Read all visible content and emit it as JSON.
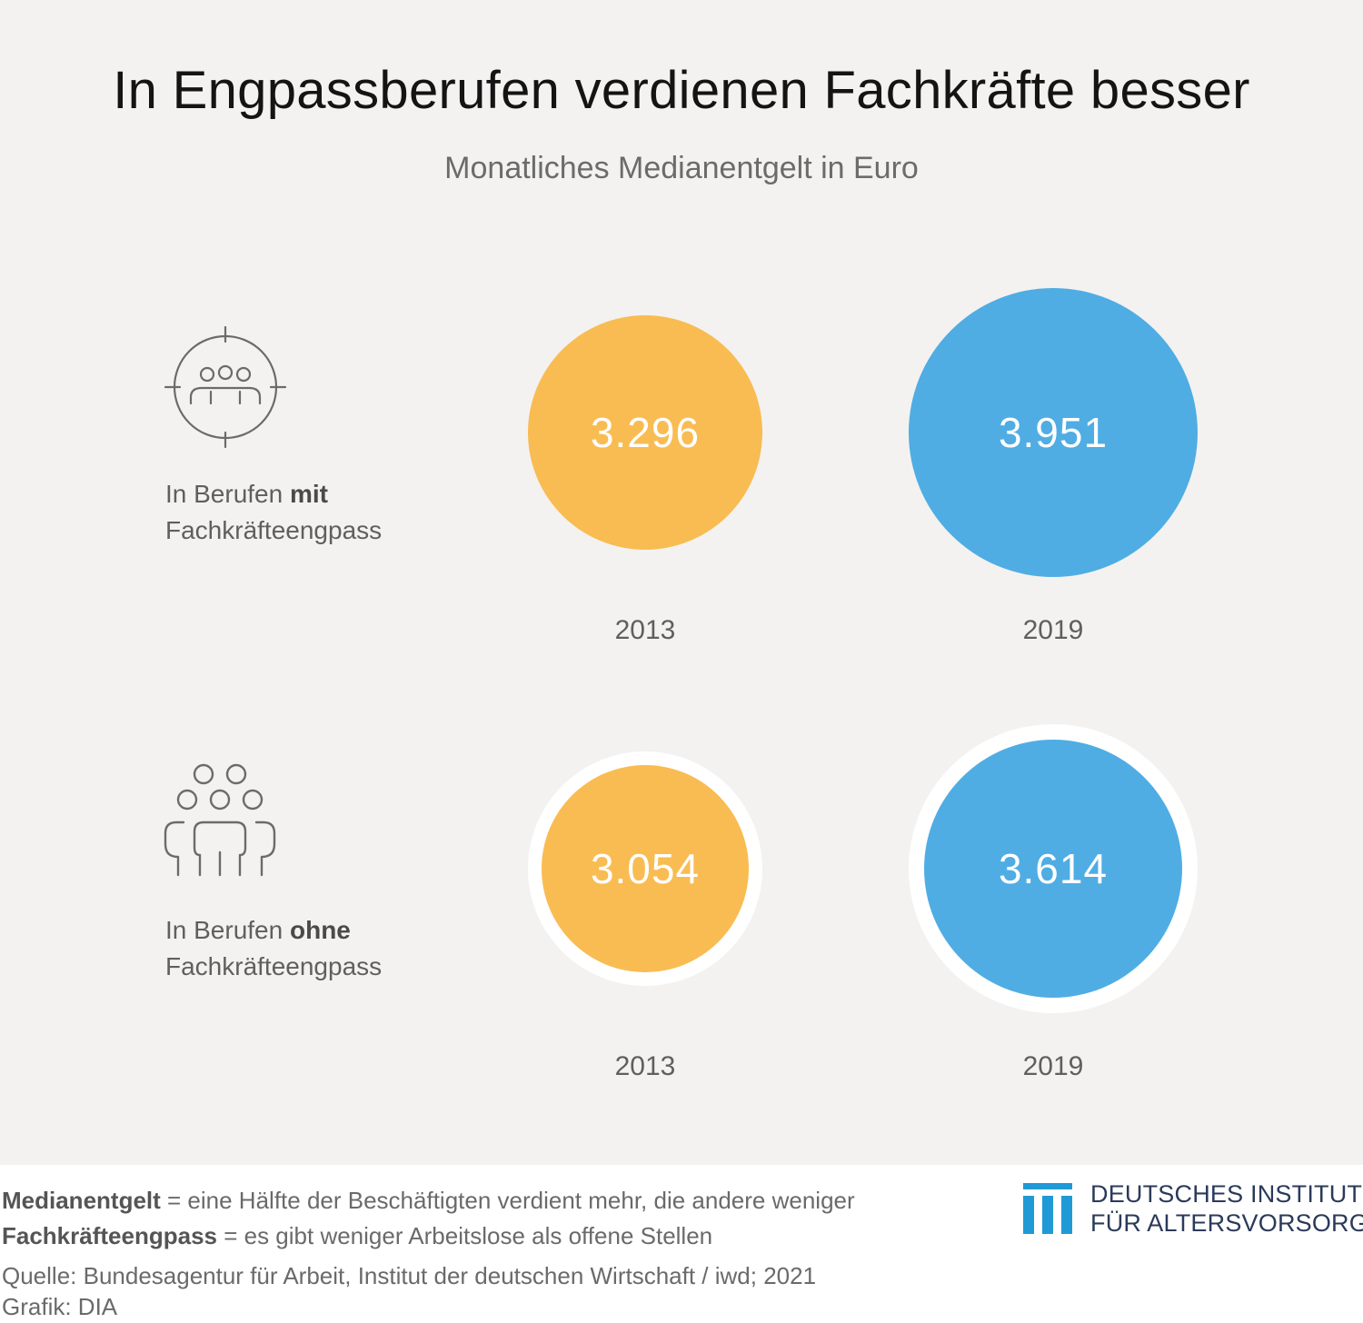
{
  "title": "In Engpassberufen verdienen Fachkräfte besser",
  "subtitle": "Monatliches Medianentgelt in Euro",
  "colors": {
    "year_2013": "#f9bc52",
    "year_2019": "#4fade3",
    "background": "#f3f2f1"
  },
  "chart_data": {
    "type": "bubble",
    "title": "In Engpassberufen verdienen Fachkräfte besser",
    "subtitle": "Monatliches Medianentgelt in Euro",
    "categories": [
      "2013",
      "2019"
    ],
    "series": [
      {
        "name_parts": {
          "prefix": "In Berufen ",
          "bold": "mit",
          "suffix": "Fachkräfteengpass"
        },
        "icon": "target-group-icon",
        "values": [
          3296,
          3951
        ],
        "labels": [
          "3.296",
          "3.951"
        ]
      },
      {
        "name_parts": {
          "prefix": "In Berufen ",
          "bold": "ohne",
          "suffix": "Fachkräfteengpass"
        },
        "icon": "people-group-icon",
        "values": [
          3054,
          3614
        ],
        "labels": [
          "3.054",
          "3.614"
        ]
      }
    ]
  },
  "footer": {
    "def1_term": "Medianentgelt",
    "def1_text": " = eine Hälfte der Beschäftigten verdient mehr, die andere weniger",
    "def2_term": "Fachkräfteengpass",
    "def2_text": " = es gibt weniger Arbeitslose als offene Stellen",
    "source": "Quelle: Bundesagentur für Arbeit, Institut der deutschen Wirtschaft / iwd; 2021",
    "credit": "Grafik: DIA"
  },
  "logo": {
    "line1": "DEUTSCHES INSTITUT",
    "line2": "FÜR ALTERSVORSORGE",
    "icon": "dia-columns-logo"
  }
}
